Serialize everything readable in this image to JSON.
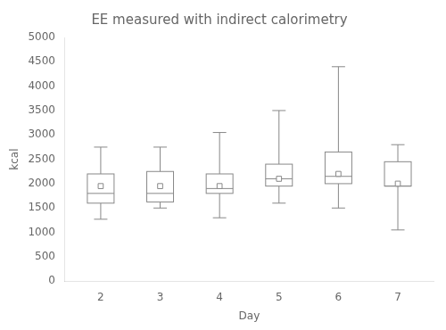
{
  "chart_data": {
    "type": "box",
    "title": "EE measured with indirect calorimetry",
    "xlabel": "Day",
    "ylabel": "kcal",
    "x": [
      2,
      3,
      4,
      5,
      6,
      7
    ],
    "min": [
      1270,
      1500,
      1300,
      1600,
      1500,
      1050
    ],
    "q1": [
      1600,
      1625,
      1800,
      1950,
      2000,
      1950
    ],
    "median": [
      1800,
      1800,
      1900,
      2100,
      2150,
      1950
    ],
    "q3": [
      2200,
      2250,
      2200,
      2400,
      2650,
      2450
    ],
    "max": [
      2750,
      2750,
      3050,
      3500,
      4400,
      2800
    ],
    "mean": [
      1950,
      1950,
      1950,
      2100,
      2200,
      2000
    ],
    "color": "#888888",
    "marker": "square",
    "xlim": [
      1.4,
      7.6
    ],
    "xticks": [
      2,
      3,
      4,
      5,
      6,
      7
    ],
    "ylim": [
      0,
      5000
    ],
    "yticks": [
      0,
      500,
      1000,
      1500,
      2000,
      2500,
      3000,
      3500,
      4000,
      4500,
      5000
    ],
    "grid": false
  }
}
